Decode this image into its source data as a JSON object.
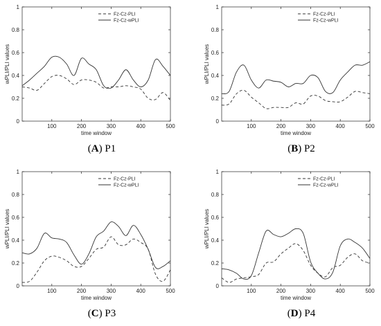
{
  "chart_data": [
    {
      "type": "line",
      "panel_letter": "A",
      "panel_name": "P1",
      "xlabel": "time window",
      "ylabel": "wPLI/PLI values",
      "xlim": [
        0,
        500
      ],
      "ylim": [
        0,
        1
      ],
      "xticks": [
        100,
        200,
        300,
        400,
        500
      ],
      "yticks": [
        0,
        0.2,
        0.4,
        0.6,
        0.8,
        1
      ],
      "legend_position": "top-right",
      "grid": false,
      "series": [
        {
          "name": "Fz-Cz-PLI",
          "style": "dashed",
          "x": [
            0,
            25,
            50,
            75,
            100,
            125,
            150,
            175,
            200,
            225,
            250,
            275,
            300,
            325,
            350,
            375,
            400,
            425,
            450,
            475,
            500
          ],
          "y": [
            0.3,
            0.29,
            0.27,
            0.33,
            0.39,
            0.4,
            0.37,
            0.32,
            0.36,
            0.36,
            0.34,
            0.29,
            0.3,
            0.3,
            0.31,
            0.3,
            0.28,
            0.2,
            0.19,
            0.25,
            0.18
          ]
        },
        {
          "name": "Fz-Cz-wPLI",
          "style": "solid",
          "x": [
            0,
            25,
            50,
            75,
            100,
            125,
            150,
            175,
            200,
            225,
            250,
            275,
            300,
            325,
            350,
            375,
            400,
            425,
            450,
            475,
            500
          ],
          "y": [
            0.31,
            0.36,
            0.42,
            0.48,
            0.56,
            0.56,
            0.5,
            0.4,
            0.55,
            0.5,
            0.45,
            0.31,
            0.29,
            0.36,
            0.45,
            0.36,
            0.3,
            0.36,
            0.54,
            0.48,
            0.4
          ]
        }
      ]
    },
    {
      "type": "line",
      "panel_letter": "B",
      "panel_name": "P2",
      "xlabel": "time window",
      "ylabel": "wPLI/PLI values",
      "xlim": [
        0,
        500
      ],
      "ylim": [
        0,
        1
      ],
      "xticks": [
        100,
        200,
        300,
        400,
        500
      ],
      "yticks": [
        0,
        0.2,
        0.4,
        0.6,
        0.8,
        1
      ],
      "legend_position": "top-right",
      "grid": false,
      "series": [
        {
          "name": "Fz-Cz-PLI",
          "style": "dashed",
          "x": [
            0,
            25,
            50,
            75,
            100,
            125,
            150,
            175,
            200,
            225,
            250,
            275,
            300,
            325,
            350,
            375,
            400,
            425,
            450,
            475,
            500
          ],
          "y": [
            0.14,
            0.15,
            0.24,
            0.27,
            0.21,
            0.16,
            0.11,
            0.12,
            0.12,
            0.12,
            0.16,
            0.15,
            0.22,
            0.22,
            0.18,
            0.17,
            0.17,
            0.21,
            0.26,
            0.25,
            0.24
          ]
        },
        {
          "name": "Fz-Cz-wPLI",
          "style": "solid",
          "x": [
            0,
            25,
            50,
            75,
            100,
            125,
            150,
            175,
            200,
            225,
            250,
            275,
            300,
            325,
            350,
            375,
            400,
            425,
            450,
            475,
            500
          ],
          "y": [
            0.24,
            0.26,
            0.43,
            0.49,
            0.36,
            0.29,
            0.36,
            0.35,
            0.34,
            0.3,
            0.33,
            0.33,
            0.4,
            0.38,
            0.26,
            0.25,
            0.36,
            0.43,
            0.49,
            0.49,
            0.52
          ]
        }
      ]
    },
    {
      "type": "line",
      "panel_letter": "C",
      "panel_name": "P3",
      "xlabel": "time window",
      "ylabel": "wPLI/PLI values",
      "xlim": [
        0,
        500
      ],
      "ylim": [
        0,
        1
      ],
      "xticks": [
        100,
        200,
        300,
        400,
        500
      ],
      "yticks": [
        0,
        0.2,
        0.4,
        0.6,
        0.8,
        1
      ],
      "legend_position": "top-right",
      "grid": false,
      "series": [
        {
          "name": "Fz-Cz-PLI",
          "style": "dashed",
          "x": [
            0,
            25,
            50,
            75,
            100,
            125,
            150,
            175,
            200,
            225,
            250,
            275,
            300,
            325,
            350,
            375,
            400,
            425,
            450,
            475,
            500
          ],
          "y": [
            0.03,
            0.04,
            0.12,
            0.22,
            0.26,
            0.25,
            0.22,
            0.17,
            0.17,
            0.24,
            0.32,
            0.34,
            0.43,
            0.36,
            0.36,
            0.41,
            0.38,
            0.32,
            0.1,
            0.04,
            0.14
          ]
        },
        {
          "name": "Fz-Cz-wPLI",
          "style": "solid",
          "x": [
            0,
            25,
            50,
            75,
            100,
            125,
            150,
            175,
            200,
            225,
            250,
            275,
            300,
            325,
            350,
            375,
            400,
            425,
            450,
            475,
            500
          ],
          "y": [
            0.29,
            0.28,
            0.33,
            0.46,
            0.42,
            0.41,
            0.38,
            0.27,
            0.19,
            0.28,
            0.43,
            0.48,
            0.56,
            0.52,
            0.44,
            0.53,
            0.45,
            0.32,
            0.16,
            0.17,
            0.22
          ]
        }
      ]
    },
    {
      "type": "line",
      "panel_letter": "D",
      "panel_name": "P4",
      "xlabel": "time window",
      "ylabel": "wPLI/PLI values",
      "xlim": [
        0,
        500
      ],
      "ylim": [
        0,
        1
      ],
      "xticks": [
        100,
        200,
        300,
        400,
        500
      ],
      "yticks": [
        0,
        0.2,
        0.4,
        0.6,
        0.8,
        1
      ],
      "legend_position": "top-right",
      "grid": false,
      "series": [
        {
          "name": "Fz-Cz-PLI",
          "style": "dashed",
          "x": [
            0,
            25,
            50,
            75,
            100,
            125,
            150,
            175,
            200,
            225,
            250,
            275,
            300,
            325,
            350,
            375,
            400,
            425,
            450,
            475,
            500
          ],
          "y": [
            0.07,
            0.03,
            0.06,
            0.07,
            0.08,
            0.1,
            0.2,
            0.21,
            0.28,
            0.33,
            0.37,
            0.31,
            0.18,
            0.11,
            0.08,
            0.16,
            0.18,
            0.25,
            0.28,
            0.22,
            0.2
          ]
        },
        {
          "name": "Fz-Cz-wPLI",
          "style": "solid",
          "x": [
            0,
            25,
            50,
            75,
            100,
            125,
            150,
            175,
            200,
            225,
            250,
            275,
            300,
            325,
            350,
            375,
            400,
            425,
            450,
            475,
            500
          ],
          "y": [
            0.15,
            0.14,
            0.11,
            0.06,
            0.09,
            0.29,
            0.48,
            0.45,
            0.43,
            0.46,
            0.5,
            0.46,
            0.21,
            0.11,
            0.06,
            0.12,
            0.35,
            0.41,
            0.38,
            0.33,
            0.24
          ]
        }
      ]
    }
  ]
}
